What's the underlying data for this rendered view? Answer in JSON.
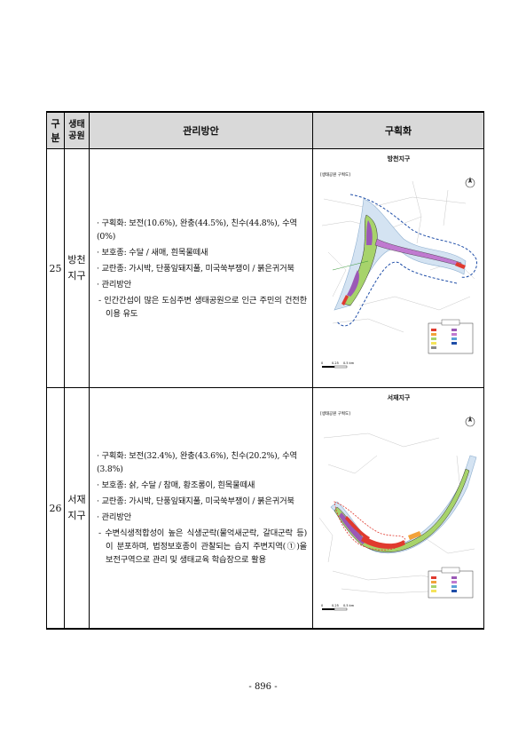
{
  "table": {
    "headers": {
      "num": "구분",
      "park_line1": "생태",
      "park_line2": "공원",
      "mgmt": "관리방안",
      "zoning": "구획화"
    },
    "rows": [
      {
        "num": "25",
        "park_line1": "방천",
        "park_line2": "지구",
        "bullets": [
          "· 구획화: 보전(10.6%), 완충(44.5%), 친수(44.8%), 수역(0%)",
          "· 보호종: 수달 / 새매, 흰목물떼새",
          "· 교란종: 가시박, 단풍잎돼지풀, 미국쑥부쟁이 / 붉은귀거북",
          "· 관리방안"
        ],
        "detail": "- 인간간섭이 많은 도심주변 생태공원으로 인근 주민의 건전한 이용 유도",
        "map": {
          "title": "방천지구",
          "inner_label": "[생태공원 구획도]",
          "scale_labels": [
            "0",
            "0.25",
            "0.5 km"
          ]
        }
      },
      {
        "num": "26",
        "park_line1": "서재",
        "park_line2": "지구",
        "bullets": [
          "· 구획화: 보전(32.4%), 완충(43.6%), 친수(20.2%), 수역(3.8%)",
          "· 보호종: 삵, 수달 / 참매, 황조롱이, 흰목물떼새",
          "· 교란종: 가시박, 단풍잎돼지풀, 미국쑥부쟁이 / 붉은귀거북",
          "· 관리방안"
        ],
        "detail": "- 수변식생적합성이 높은 식생군락(물억새군락, 갈대군락 등)이 분포하며, 법정보호종이 관찰되는 습지 주변지역(①)을 보전구역으로 관리 및 생태교육 학습장으로 활용",
        "map": {
          "title": "서재지구",
          "inner_label": "[생태공원 구획도]",
          "scale_labels": [
            "0",
            "0.25",
            "0.5 km"
          ]
        }
      }
    ]
  },
  "footer": {
    "page_number": "- 896 -"
  }
}
